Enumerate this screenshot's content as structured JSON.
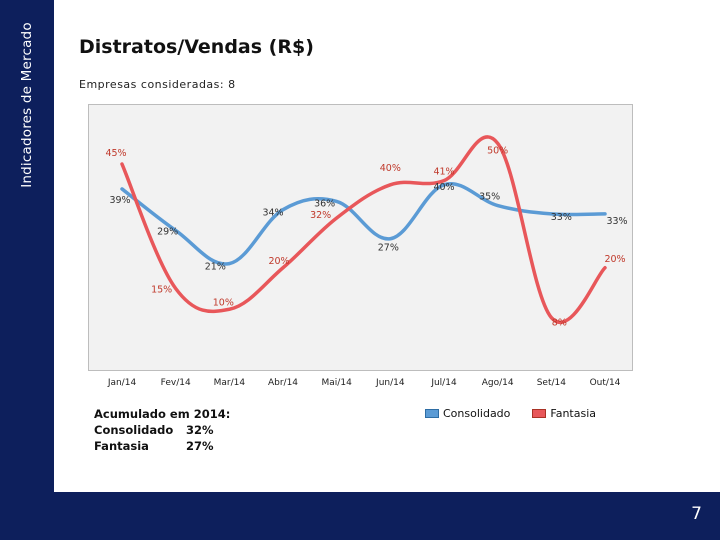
{
  "sidebar": {
    "title": "Indicadores de Mercado"
  },
  "header": {
    "title": "Distratos/Vendas (R$)",
    "subtitle": "Empresas consideradas: 8"
  },
  "summary": {
    "heading": "Acumulado em 2014:",
    "rows": [
      {
        "label": "Consolidado",
        "value": "32%"
      },
      {
        "label": "Fantasia",
        "value": "27%"
      }
    ]
  },
  "colors": {
    "consolidado": "#5b9bd5",
    "fantasia": "#e8575a",
    "sidebar": "#0d1f5c"
  },
  "page_number": "7",
  "chart_data": {
    "type": "line",
    "categories": [
      "Jan/14",
      "Fev/14",
      "Mar/14",
      "Abr/14",
      "Mai/14",
      "Jun/14",
      "Jul/14",
      "Ago/14",
      "Set/14",
      "Out/14"
    ],
    "series": [
      {
        "name": "Consolidado",
        "color": "#5b9bd5",
        "values": [
          39,
          29,
          21,
          34,
          36,
          27,
          40,
          35,
          33,
          33
        ],
        "labels": [
          "39%",
          "29%",
          "21%",
          "34%",
          "36%",
          "27%",
          "40%",
          "35%",
          "33%",
          "33%"
        ]
      },
      {
        "name": "Fantasia",
        "color": "#e8575a",
        "values": [
          45,
          15,
          10,
          20,
          32,
          40,
          41,
          50,
          8,
          20
        ],
        "labels": [
          "45%",
          "15%",
          "10%",
          "20%",
          "32%",
          "40%",
          "41%",
          "50%",
          "8%",
          "20%"
        ]
      }
    ],
    "ylim": [
      5,
      52
    ],
    "legend": "bottom-right"
  }
}
